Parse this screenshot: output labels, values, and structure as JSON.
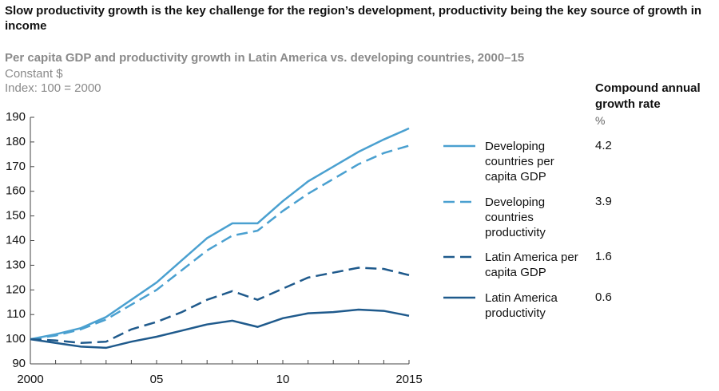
{
  "chart_data": {
    "type": "line",
    "title": "Slow productivity growth is the key challenge for the region’s development, productivity being the key source of growth in income",
    "subtitle": "Per capita GDP and productivity growth in Latin America vs. developing countries, 2000–15",
    "notes": [
      "Constant $",
      "Index: 100 = 2000"
    ],
    "legend_header": "Compound annual growth rate",
    "legend_unit": "%",
    "x": [
      2000,
      2001,
      2002,
      2003,
      2004,
      2005,
      2006,
      2007,
      2008,
      2009,
      2010,
      2011,
      2012,
      2013,
      2014,
      2015
    ],
    "xlim": [
      2000,
      2015
    ],
    "xticks": [
      2000,
      {
        "value": 2005,
        "label": "05"
      },
      {
        "value": 2010,
        "label": "10"
      },
      2015
    ],
    "ylim": [
      90,
      190
    ],
    "yticks": [
      90,
      100,
      110,
      120,
      130,
      140,
      150,
      160,
      170,
      180,
      190
    ],
    "series": [
      {
        "name": "Developing countries per capita GDP",
        "color": "#4aa0d0",
        "dashed": false,
        "cagr": 4.2,
        "values": [
          100,
          102,
          104.5,
          109,
          116,
          123,
          132,
          141,
          147,
          147,
          156,
          164,
          170,
          176,
          181,
          185.5
        ]
      },
      {
        "name": "Developing countries productivity",
        "color": "#4aa0d0",
        "dashed": true,
        "cagr": 3.9,
        "values": [
          100,
          101.5,
          104,
          108,
          114,
          120,
          128,
          136,
          142,
          144,
          152,
          159,
          165,
          171,
          175.5,
          178.5
        ]
      },
      {
        "name": "Latin America per capita GDP",
        "color": "#1f5a8c",
        "dashed": true,
        "cagr": 1.6,
        "values": [
          100,
          99.5,
          98.5,
          99,
          104,
          107,
          111,
          116,
          119.5,
          116,
          120.5,
          125,
          127,
          129,
          128.5,
          126
        ]
      },
      {
        "name": "Latin America productivity",
        "color": "#1f5a8c",
        "dashed": false,
        "cagr": 0.6,
        "values": [
          100,
          98.5,
          97,
          96.5,
          99,
          101,
          103.5,
          106,
          107.5,
          105,
          108.5,
          110.5,
          111,
          112,
          111.5,
          109.5
        ]
      }
    ]
  }
}
